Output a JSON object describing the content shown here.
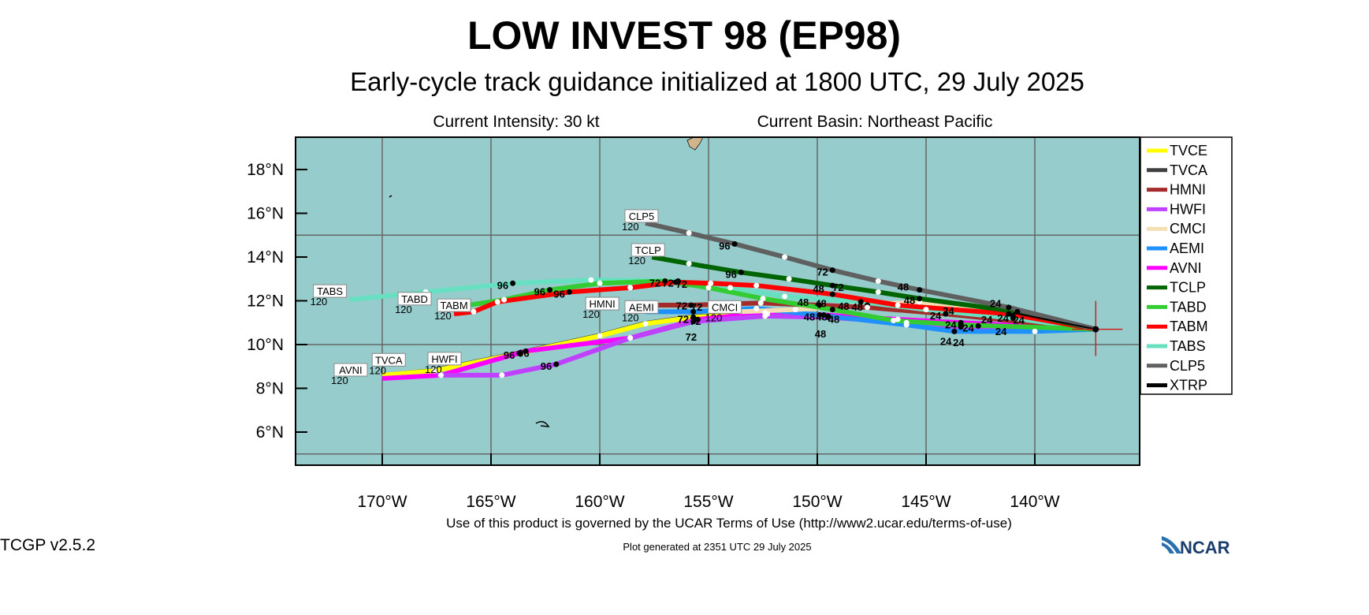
{
  "header": {
    "title": "LOW INVEST 98 (EP98)",
    "subtitle": "Early-cycle track guidance initialized at 1800 UTC, 29 July 2025",
    "intensity": "Current Intensity: 30 kt",
    "basin": "Current Basin: Northeast Pacific"
  },
  "footer": {
    "terms": "Use of this product is governed by the UCAR Terms of Use (http://www2.ucar.edu/terms-of-use)",
    "version": "TCGP v2.5.2",
    "generated": "Plot generated at 2351 UTC   29 July 2025",
    "logo": "NCAR"
  },
  "chart_data": {
    "type": "line",
    "title": "LOW INVEST 98 (EP98)",
    "xlabel": "Longitude",
    "ylabel": "Latitude",
    "xlim": [
      -174,
      -135.2
    ],
    "ylim": [
      4.5,
      19.5
    ],
    "x_ticks": [
      {
        "v": -170,
        "label": "170°W"
      },
      {
        "v": -165,
        "label": "165°W"
      },
      {
        "v": -160,
        "label": "160°W"
      },
      {
        "v": -155,
        "label": "155°W"
      },
      {
        "v": -150,
        "label": "150°W"
      },
      {
        "v": -145,
        "label": "145°W"
      },
      {
        "v": -140,
        "label": "140°W"
      }
    ],
    "y_ticks": [
      {
        "v": 6,
        "label": "6°N"
      },
      {
        "v": 8,
        "label": "8°N"
      },
      {
        "v": 10,
        "label": "10°N"
      },
      {
        "v": 12,
        "label": "12°N"
      },
      {
        "v": 14,
        "label": "14°N"
      },
      {
        "v": 16,
        "label": "16°N"
      },
      {
        "v": 18,
        "label": "18°N"
      }
    ],
    "grid_lon": [
      -170,
      -165,
      -160,
      -155,
      -150,
      -145,
      -140
    ],
    "grid_lat": [
      5,
      10,
      15
    ],
    "origin": {
      "lon": -137.2,
      "lat": 10.7
    },
    "end_hour_label": "120",
    "legend_position": "right",
    "series": [
      {
        "name": "TVCA",
        "color": "#404040",
        "points": [
          [
            -169.7,
            8.62
          ],
          [
            -167.6,
            8.82
          ],
          [
            -163.7,
            9.62
          ],
          [
            -160,
            10.42
          ],
          [
            -157.9,
            10.97
          ],
          [
            -155.7,
            11.27
          ],
          [
            -152.3,
            11.42
          ],
          [
            -149.9,
            11.37
          ],
          [
            -145.9,
            11.02
          ],
          [
            -142.6,
            10.87
          ],
          [
            -137.2,
            10.7
          ]
        ],
        "hours": [],
        "label_offset": [
          0,
          -18
        ]
      },
      {
        "name": "TVCE",
        "color": "#ffff00",
        "points": [
          [
            -170,
            8.6
          ],
          [
            -167.6,
            8.8
          ],
          [
            -163.7,
            9.6
          ],
          [
            -160,
            10.4
          ],
          [
            -157.9,
            10.95
          ],
          [
            -155.7,
            11.25
          ],
          [
            -152.3,
            11.4
          ],
          [
            -149.9,
            11.35
          ],
          [
            -145.9,
            11.0
          ],
          [
            -142.6,
            10.85
          ],
          [
            -137.2,
            10.7
          ]
        ],
        "hours": [
          null,
          null,
          "96",
          null,
          null,
          "72",
          null,
          "48",
          null,
          "24",
          null
        ],
        "label_offset": null
      },
      {
        "name": "AVNI",
        "color": "#ff00ff",
        "points": [
          [
            -170,
            8.45
          ],
          [
            -167.3,
            8.6
          ],
          [
            -163.4,
            9.7
          ],
          [
            -158.6,
            10.3
          ],
          [
            -155.5,
            11.15
          ],
          [
            -152.4,
            11.45
          ],
          [
            -149.7,
            11.35
          ],
          [
            -146.3,
            11.15
          ],
          [
            -143.4,
            11.0
          ],
          [
            -137.2,
            10.7
          ]
        ],
        "hours": [
          null,
          null,
          "96",
          null,
          "72",
          null,
          "48",
          null,
          "24",
          null
        ],
        "label_offset": [
          -40,
          -10
        ]
      },
      {
        "name": "HWFI",
        "color": "#c040ff",
        "points": [
          [
            -167.5,
            8.6
          ],
          [
            -164.5,
            8.6
          ],
          [
            -162,
            9.1
          ],
          [
            -158.6,
            10.3
          ],
          [
            -155.7,
            11.05
          ],
          [
            -152.4,
            11.3
          ],
          [
            -149.5,
            11.25
          ],
          [
            -143.4,
            10.8
          ],
          [
            -137.2,
            10.7
          ]
        ],
        "hours": [
          null,
          null,
          "96",
          null,
          "72",
          null,
          "48",
          "24",
          null
        ],
        "label_offset": [
          10,
          -20
        ]
      },
      {
        "name": "AEMI",
        "color": "#1e90ff",
        "points": [
          [
            -157.9,
            11.5
          ],
          [
            -155.7,
            11.5
          ],
          [
            -152.8,
            11.65
          ],
          [
            -149.5,
            11.3
          ],
          [
            -145.9,
            10.9
          ],
          [
            -143.7,
            10.6
          ],
          [
            -140,
            10.6
          ],
          [
            -137.2,
            10.7
          ]
        ],
        "hours": [
          null,
          "72",
          null,
          "48",
          null,
          "24",
          null,
          null
        ],
        "label_offset": [
          -5,
          -5
        ]
      },
      {
        "name": "CMCI",
        "color": "#f5deb3",
        "points": [
          [
            -153.6,
            11.5
          ],
          [
            -151,
            11.6
          ],
          [
            -147.7,
            11.8
          ],
          [
            -145.3,
            11.95
          ],
          [
            -141,
            11.3
          ],
          [
            -137.2,
            10.7
          ]
        ],
        "hours": [
          null,
          null,
          "48",
          null,
          "24",
          null
        ],
        "label_offset": [
          -18,
          -5
        ]
      },
      {
        "name": "HMNI",
        "color": "#a52a2a",
        "points": [
          [
            -158.4,
            11.8
          ],
          [
            -155.8,
            11.8
          ],
          [
            -152.6,
            11.9
          ],
          [
            -149.9,
            11.8
          ],
          [
            -147.7,
            11.7
          ],
          [
            -144.1,
            11.4
          ],
          [
            -137.2,
            10.7
          ]
        ],
        "hours": [
          null,
          "72",
          null,
          "48",
          null,
          "24",
          null
        ],
        "label_offset": [
          -22,
          -8
        ]
      },
      {
        "name": "TABS",
        "color": "#66e0c0",
        "points": [
          [
            -171.5,
            12.05
          ],
          [
            -168,
            12.4
          ],
          [
            -164,
            12.8
          ],
          [
            -160.4,
            12.95
          ],
          [
            -156.4,
            12.9
          ],
          [
            -154,
            12.6
          ],
          [
            -151.5,
            12.2
          ],
          [
            -148,
            11.95
          ],
          [
            -145,
            11.6
          ],
          [
            -141,
            11.2
          ],
          [
            -137.2,
            10.7
          ]
        ],
        "hours": [
          null,
          null,
          "96",
          null,
          "72",
          null,
          null,
          "48",
          null,
          "24",
          null
        ],
        "label_offset": [
          -25,
          -10
        ]
      },
      {
        "name": "TABD",
        "color": "#33cc33",
        "points": [
          [
            -166.7,
            11.7
          ],
          [
            -164.4,
            12.05
          ],
          [
            -162.3,
            12.5
          ],
          [
            -160,
            12.8
          ],
          [
            -157,
            12.9
          ],
          [
            -155,
            12.6
          ],
          [
            -152.5,
            12.1
          ],
          [
            -149.3,
            11.6
          ],
          [
            -146.5,
            11.1
          ],
          [
            -143.4,
            10.9
          ],
          [
            -137.2,
            10.7
          ]
        ],
        "hours": [
          null,
          null,
          "96",
          null,
          "72",
          null,
          null,
          "48",
          null,
          "24",
          null
        ],
        "label_offset": [
          -50,
          -10
        ]
      },
      {
        "name": "TABM",
        "color": "#ff0000",
        "points": [
          [
            -166.7,
            11.4
          ],
          [
            -165.8,
            11.5
          ],
          [
            -164.7,
            11.95
          ],
          [
            -161.4,
            12.4
          ],
          [
            -158.6,
            12.6
          ],
          [
            -156.5,
            12.85
          ],
          [
            -154.9,
            12.8
          ],
          [
            -152.8,
            12.7
          ],
          [
            -149.3,
            12.3
          ],
          [
            -146.3,
            11.8
          ],
          [
            -141.2,
            11.4
          ],
          [
            -137.2,
            10.7
          ]
        ],
        "hours": [
          null,
          null,
          null,
          "96",
          null,
          "72",
          null,
          null,
          "48",
          null,
          "24",
          null
        ],
        "label_offset": [
          -30,
          -10
        ]
      },
      {
        "name": "TCLP",
        "color": "#006400",
        "points": [
          [
            -157.6,
            14.0
          ],
          [
            -155.9,
            13.7
          ],
          [
            -153.5,
            13.3
          ],
          [
            -151.3,
            13.0
          ],
          [
            -149.3,
            12.7
          ],
          [
            -147.2,
            12.4
          ],
          [
            -145.3,
            12.1
          ],
          [
            -140.8,
            11.5
          ],
          [
            -137.2,
            10.7
          ]
        ],
        "hours": [
          null,
          null,
          "96",
          null,
          "72",
          null,
          "48",
          "24",
          null
        ],
        "label_offset": [
          -5,
          -8
        ]
      },
      {
        "name": "CLP5",
        "color": "#606060",
        "points": [
          [
            -157.9,
            15.55
          ],
          [
            -155.9,
            15.1
          ],
          [
            -153.8,
            14.6
          ],
          [
            -151.5,
            14.0
          ],
          [
            -149.3,
            13.4
          ],
          [
            -147.2,
            12.9
          ],
          [
            -145.3,
            12.5
          ],
          [
            -141.2,
            11.7
          ],
          [
            -137.2,
            10.7
          ]
        ],
        "hours": [
          null,
          null,
          "96",
          null,
          "72",
          null,
          "48",
          "24",
          null
        ],
        "label_offset": [
          -5,
          -8
        ]
      },
      {
        "name": "XTRP",
        "color": "#000000",
        "points": [
          [
            -141,
            11.45
          ],
          [
            -137.2,
            10.7
          ]
        ],
        "hours": [],
        "label_offset": null
      }
    ]
  },
  "colors": {
    "ocean": "#96cccc",
    "land": "#d2b48c",
    "grid": "#666666",
    "crosshair": "#cc2222"
  }
}
